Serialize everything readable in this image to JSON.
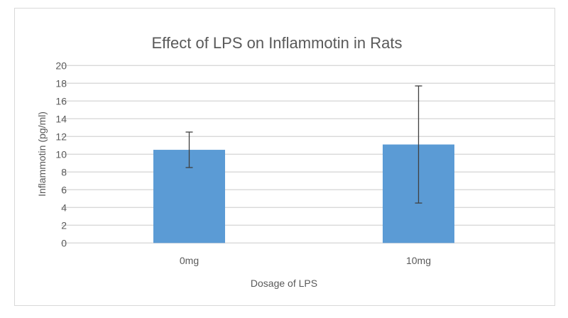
{
  "chart_data": {
    "type": "bar",
    "title": "Effect of LPS on Inflammotin in Rats",
    "xlabel": "Dosage of LPS",
    "ylabel": "Inflammotin (pg/ml)",
    "categories": [
      "0mg",
      "10mg"
    ],
    "values": [
      10.5,
      11.1
    ],
    "error_bars": [
      2.0,
      6.6
    ],
    "ylim": [
      0,
      20
    ],
    "yticks": [
      0,
      2,
      4,
      6,
      8,
      10,
      12,
      14,
      16,
      18,
      20
    ],
    "grid": true,
    "legend": "none",
    "bar_color": "#5b9bd5",
    "grid_color": "#d9d9d9",
    "text_color": "#595959"
  }
}
